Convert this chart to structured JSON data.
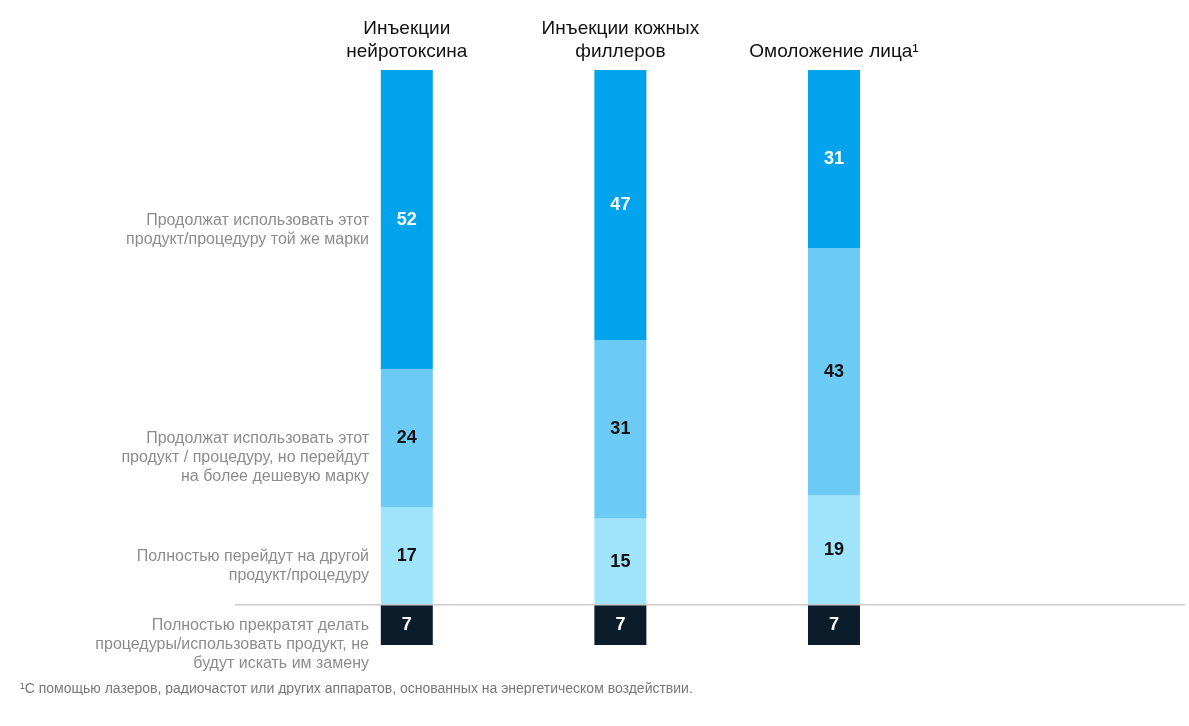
{
  "chart_data": {
    "type": "bar",
    "stacked": true,
    "legend": "left",
    "data_labels": true,
    "categories": [
      "Инъекции нейротоксина",
      "Инъекции кожных филлеров",
      "Омоложение лица¹"
    ],
    "series": [
      {
        "name": "Полностью прекратят делать процедуры/использовать продукт, не будут искать им замену",
        "color": "#0b1c2a",
        "values": [
          7,
          7,
          7
        ]
      },
      {
        "name": "Полностью перейдут на другой продукт/процедуру",
        "color": "#a0e4fb",
        "values": [
          17,
          15,
          19
        ]
      },
      {
        "name": "Продолжат использовать этот продукт / процедуру, но перейдут на более дешевую марку",
        "color": "#6ccbf5",
        "values": [
          24,
          31,
          43
        ]
      },
      {
        "name": "Продолжат использовать этот продукт/процедуру той же марки",
        "color": "#00a3ec",
        "values": [
          52,
          47,
          31
        ]
      }
    ],
    "ylim": [
      0,
      100
    ],
    "ref_lines": [
      {
        "axis": "y",
        "value": 7,
        "color": "#cccccc"
      }
    ],
    "annotations": [
      "¹С помощью лазеров, радиочастот или других аппаратов, основанных на энергетическом воздействии."
    ]
  }
}
